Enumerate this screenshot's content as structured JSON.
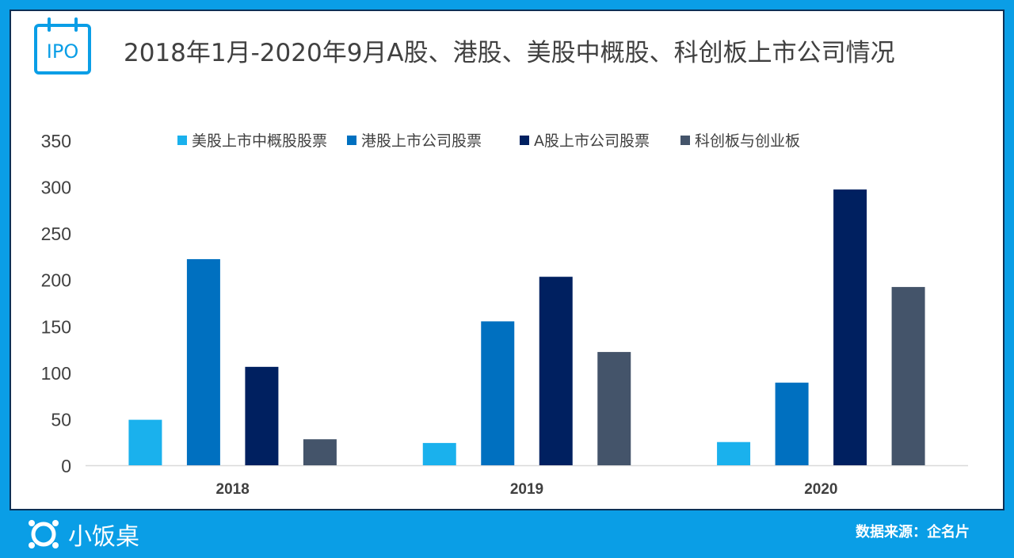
{
  "title": "2018年1月-2020年9月A股、港股、美股中概股、科创板上市公司情况",
  "icon_label": "IPO",
  "logo_text": "小饭桌",
  "source_text": "数据来源：企名片",
  "colors": {
    "background": "#0a9ee6",
    "us_china_concept": "#1ab1ed",
    "hk_listed": "#0070c0",
    "a_share": "#002060",
    "star_chinext": "#44546a"
  },
  "chart_data": {
    "type": "bar",
    "title": "2018年1月-2020年9月A股、港股、美股中概股、科创板上市公司情况",
    "categories": [
      "2018",
      "2019",
      "2020"
    ],
    "series": [
      {
        "name": "美股上市中概股股票",
        "values": [
          49,
          24,
          25
        ]
      },
      {
        "name": "港股上市公司股票",
        "values": [
          222,
          155,
          89
        ]
      },
      {
        "name": "A股上市公司股票",
        "values": [
          106,
          203,
          297
        ]
      },
      {
        "name": "科创板与创业板",
        "values": [
          28,
          122,
          192
        ]
      }
    ],
    "yticks": [
      "0",
      "50",
      "100",
      "150",
      "200",
      "250",
      "300",
      "350"
    ],
    "ylim": [
      0,
      350
    ],
    "grid": false,
    "legend_position": "top"
  }
}
